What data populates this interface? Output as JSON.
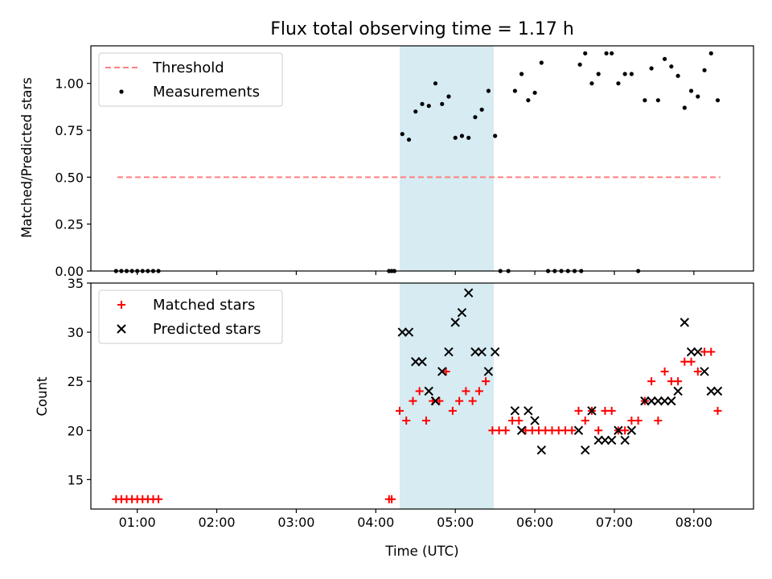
{
  "colors": {
    "highlight": "#add8e6",
    "threshold": "#ff7f7f",
    "measurement": "#000000",
    "matched": "#ff0000",
    "predicted": "#000000"
  },
  "chart_data": [
    {
      "type": "scatter",
      "title": "Flux total observing time = 1.17 h",
      "ylabel": "Matched/Predicted stars",
      "xlabel": "",
      "xlim": [
        "00:25",
        "08:45"
      ],
      "ylim": [
        0,
        1.2
      ],
      "highlight_span": [
        "04:18",
        "05:29"
      ],
      "xticks": [
        "01:00",
        "02:00",
        "03:00",
        "04:00",
        "05:00",
        "06:00",
        "07:00",
        "08:00"
      ],
      "yticks": [
        "0.00",
        "0.25",
        "0.50",
        "0.75",
        "1.00"
      ],
      "legend": {
        "placement": "upper-left",
        "entries": [
          "Threshold",
          "Measurements"
        ]
      },
      "threshold": {
        "name": "Threshold",
        "y": 0.5,
        "x_range": [
          "00:45",
          "08:20"
        ]
      },
      "series": [
        {
          "name": "Measurements",
          "points": [
            [
              "00:44",
              0
            ],
            [
              "00:48",
              0
            ],
            [
              "00:52",
              0
            ],
            [
              "00:56",
              0
            ],
            [
              "01:00",
              0
            ],
            [
              "01:04",
              0
            ],
            [
              "01:08",
              0
            ],
            [
              "01:12",
              0
            ],
            [
              "01:16",
              0
            ],
            [
              "04:10",
              0
            ],
            [
              "04:12",
              0
            ],
            [
              "04:14",
              0
            ],
            [
              "04:20",
              0.73
            ],
            [
              "04:25",
              0.7
            ],
            [
              "04:30",
              0.85
            ],
            [
              "04:35",
              0.89
            ],
            [
              "04:40",
              0.88
            ],
            [
              "04:45",
              1.0
            ],
            [
              "04:50",
              0.89
            ],
            [
              "04:55",
              0.93
            ],
            [
              "05:00",
              0.71
            ],
            [
              "05:05",
              0.72
            ],
            [
              "05:10",
              0.71
            ],
            [
              "05:15",
              0.82
            ],
            [
              "05:20",
              0.86
            ],
            [
              "05:25",
              0.96
            ],
            [
              "05:30",
              0.72
            ],
            [
              "05:34",
              0
            ],
            [
              "05:40",
              0
            ],
            [
              "05:45",
              0.96
            ],
            [
              "05:50",
              1.05
            ],
            [
              "05:55",
              0.91
            ],
            [
              "06:00",
              0.95
            ],
            [
              "06:05",
              1.11
            ],
            [
              "06:10",
              0
            ],
            [
              "06:15",
              0
            ],
            [
              "06:20",
              0
            ],
            [
              "06:25",
              0
            ],
            [
              "06:30",
              0
            ],
            [
              "06:35",
              0
            ],
            [
              "06:34",
              1.1
            ],
            [
              "06:38",
              1.16
            ],
            [
              "06:43",
              1.0
            ],
            [
              "06:48",
              1.05
            ],
            [
              "06:54",
              1.16
            ],
            [
              "06:58",
              1.16
            ],
            [
              "07:03",
              1.0
            ],
            [
              "07:08",
              1.05
            ],
            [
              "07:13",
              1.05
            ],
            [
              "07:18",
              0
            ],
            [
              "07:23",
              0.91
            ],
            [
              "07:28",
              1.08
            ],
            [
              "07:33",
              0.91
            ],
            [
              "07:38",
              1.13
            ],
            [
              "07:43",
              1.09
            ],
            [
              "07:48",
              1.04
            ],
            [
              "07:53",
              0.87
            ],
            [
              "07:58",
              0.96
            ],
            [
              "08:03",
              0.93
            ],
            [
              "08:08",
              1.07
            ],
            [
              "08:13",
              1.16
            ],
            [
              "08:18",
              0.91
            ]
          ]
        }
      ]
    },
    {
      "type": "scatter",
      "title": "",
      "xlabel": "Time (UTC)",
      "ylabel": "Count",
      "xlim": [
        "00:25",
        "08:45"
      ],
      "ylim": [
        12,
        35
      ],
      "highlight_span": [
        "04:18",
        "05:29"
      ],
      "xticks": [
        "01:00",
        "02:00",
        "03:00",
        "04:00",
        "05:00",
        "06:00",
        "07:00",
        "08:00"
      ],
      "yticks": [
        "15",
        "20",
        "25",
        "30",
        "35"
      ],
      "legend": {
        "placement": "upper-left",
        "entries": [
          "Matched stars",
          "Predicted stars"
        ]
      },
      "series": [
        {
          "name": "Matched stars",
          "marker": "plus",
          "points": [
            [
              "00:44",
              13
            ],
            [
              "00:48",
              13
            ],
            [
              "00:52",
              13
            ],
            [
              "00:56",
              13
            ],
            [
              "01:00",
              13
            ],
            [
              "01:04",
              13
            ],
            [
              "01:08",
              13
            ],
            [
              "01:12",
              13
            ],
            [
              "01:16",
              13
            ],
            [
              "04:10",
              13
            ],
            [
              "04:12",
              13
            ],
            [
              "04:18",
              22
            ],
            [
              "04:23",
              21
            ],
            [
              "04:28",
              23
            ],
            [
              "04:33",
              24
            ],
            [
              "04:38",
              21
            ],
            [
              "04:43",
              23
            ],
            [
              "04:48",
              23
            ],
            [
              "04:53",
              26
            ],
            [
              "04:58",
              22
            ],
            [
              "05:03",
              23
            ],
            [
              "05:08",
              24
            ],
            [
              "05:13",
              23
            ],
            [
              "05:18",
              24
            ],
            [
              "05:23",
              25
            ],
            [
              "05:28",
              20
            ],
            [
              "05:33",
              20
            ],
            [
              "05:38",
              20
            ],
            [
              "05:43",
              21
            ],
            [
              "05:48",
              21
            ],
            [
              "05:53",
              20
            ],
            [
              "05:58",
              20
            ],
            [
              "06:03",
              20
            ],
            [
              "06:08",
              20
            ],
            [
              "06:13",
              20
            ],
            [
              "06:18",
              20
            ],
            [
              "06:23",
              20
            ],
            [
              "06:28",
              20
            ],
            [
              "06:33",
              22
            ],
            [
              "06:38",
              21
            ],
            [
              "06:43",
              22
            ],
            [
              "06:48",
              20
            ],
            [
              "06:53",
              22
            ],
            [
              "06:58",
              22
            ],
            [
              "07:03",
              20
            ],
            [
              "07:08",
              20
            ],
            [
              "07:13",
              21
            ],
            [
              "07:18",
              21
            ],
            [
              "07:23",
              23
            ],
            [
              "07:28",
              25
            ],
            [
              "07:33",
              21
            ],
            [
              "07:38",
              26
            ],
            [
              "07:43",
              25
            ],
            [
              "07:48",
              25
            ],
            [
              "07:53",
              27
            ],
            [
              "07:58",
              27
            ],
            [
              "08:03",
              26
            ],
            [
              "08:08",
              28
            ],
            [
              "08:13",
              28
            ],
            [
              "08:18",
              22
            ]
          ]
        },
        {
          "name": "Predicted stars",
          "marker": "x",
          "points": [
            [
              "04:20",
              30
            ],
            [
              "04:25",
              30
            ],
            [
              "04:30",
              27
            ],
            [
              "04:35",
              27
            ],
            [
              "04:40",
              24
            ],
            [
              "04:45",
              23
            ],
            [
              "04:50",
              26
            ],
            [
              "04:55",
              28
            ],
            [
              "05:00",
              31
            ],
            [
              "05:05",
              32
            ],
            [
              "05:10",
              34
            ],
            [
              "05:15",
              28
            ],
            [
              "05:20",
              28
            ],
            [
              "05:25",
              26
            ],
            [
              "05:30",
              28
            ],
            [
              "05:45",
              22
            ],
            [
              "05:50",
              20
            ],
            [
              "05:55",
              22
            ],
            [
              "06:00",
              21
            ],
            [
              "06:05",
              18
            ],
            [
              "06:33",
              20
            ],
            [
              "06:38",
              18
            ],
            [
              "06:43",
              22
            ],
            [
              "06:48",
              19
            ],
            [
              "06:53",
              19
            ],
            [
              "06:58",
              19
            ],
            [
              "07:03",
              20
            ],
            [
              "07:08",
              19
            ],
            [
              "07:13",
              20
            ],
            [
              "07:23",
              23
            ],
            [
              "07:28",
              23
            ],
            [
              "07:33",
              23
            ],
            [
              "07:38",
              23
            ],
            [
              "07:43",
              23
            ],
            [
              "07:48",
              24
            ],
            [
              "07:53",
              31
            ],
            [
              "07:58",
              28
            ],
            [
              "08:03",
              28
            ],
            [
              "08:08",
              26
            ],
            [
              "08:13",
              24
            ],
            [
              "08:18",
              24
            ]
          ]
        }
      ]
    }
  ]
}
